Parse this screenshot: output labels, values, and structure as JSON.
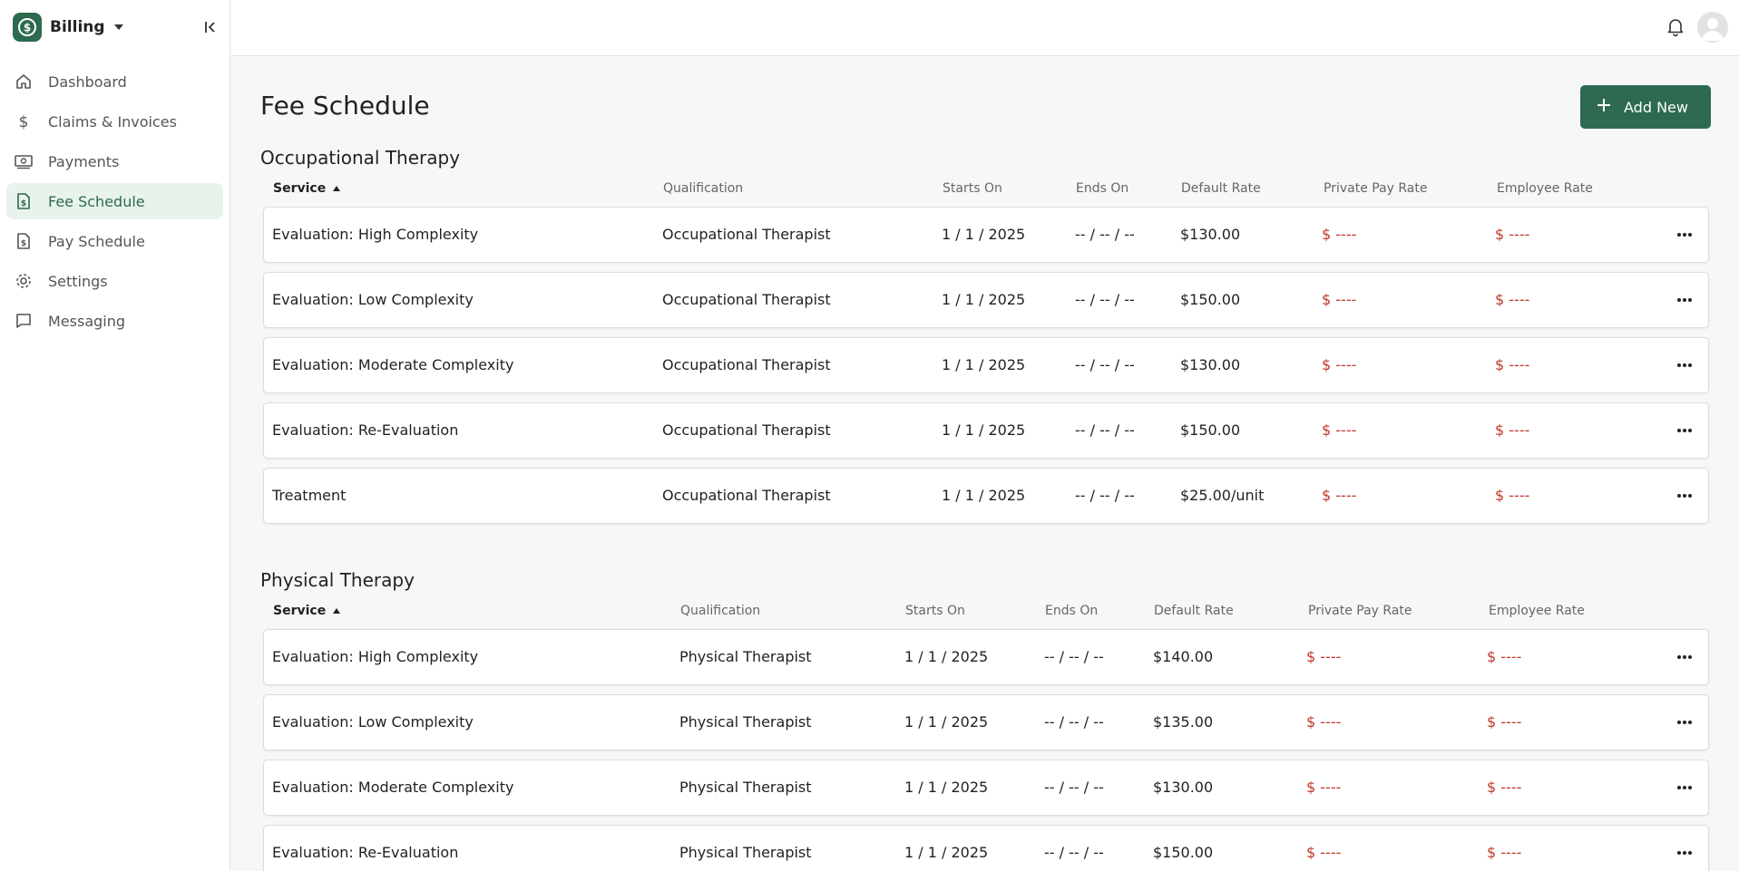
{
  "app": {
    "name": "Billing"
  },
  "nav": {
    "items": [
      {
        "label": "Dashboard"
      },
      {
        "label": "Claims & Invoices"
      },
      {
        "label": "Payments"
      },
      {
        "label": "Fee Schedule"
      },
      {
        "label": "Pay Schedule"
      },
      {
        "label": "Settings"
      },
      {
        "label": "Messaging"
      }
    ]
  },
  "page": {
    "title": "Fee Schedule",
    "add_button": "Add New"
  },
  "columns": [
    "Service",
    "Qualification",
    "Starts On",
    "Ends On",
    "Default Rate",
    "Private Pay Rate",
    "Employee Rate"
  ],
  "sections": [
    {
      "title": "Occupational Therapy",
      "rows": [
        {
          "service": "Evaluation: High Complexity",
          "qualification": "Occupational Therapist",
          "starts": "1 / 1 / 2025",
          "ends": "-- / -- / --",
          "default_rate": "$130.00",
          "private_pay": "$ ----",
          "employee": "$ ----"
        },
        {
          "service": "Evaluation: Low Complexity",
          "qualification": "Occupational Therapist",
          "starts": "1 / 1 / 2025",
          "ends": "-- / -- / --",
          "default_rate": "$150.00",
          "private_pay": "$ ----",
          "employee": "$ ----"
        },
        {
          "service": "Evaluation: Moderate Complexity",
          "qualification": "Occupational Therapist",
          "starts": "1 / 1 / 2025",
          "ends": "-- / -- / --",
          "default_rate": "$130.00",
          "private_pay": "$ ----",
          "employee": "$ ----"
        },
        {
          "service": "Evaluation: Re-Evaluation",
          "qualification": "Occupational Therapist",
          "starts": "1 / 1 / 2025",
          "ends": "-- / -- / --",
          "default_rate": "$150.00",
          "private_pay": "$ ----",
          "employee": "$ ----"
        },
        {
          "service": "Treatment",
          "qualification": "Occupational Therapist",
          "starts": "1 / 1 / 2025",
          "ends": "-- / -- / --",
          "default_rate": "$25.00/unit",
          "private_pay": "$ ----",
          "employee": "$ ----"
        }
      ]
    },
    {
      "title": "Physical Therapy",
      "rows": [
        {
          "service": "Evaluation: High Complexity",
          "qualification": "Physical Therapist",
          "starts": "1 / 1 / 2025",
          "ends": "-- / -- / --",
          "default_rate": "$140.00",
          "private_pay": "$ ----",
          "employee": "$ ----"
        },
        {
          "service": "Evaluation: Low Complexity",
          "qualification": "Physical Therapist",
          "starts": "1 / 1 / 2025",
          "ends": "-- / -- / --",
          "default_rate": "$135.00",
          "private_pay": "$ ----",
          "employee": "$ ----"
        },
        {
          "service": "Evaluation: Moderate Complexity",
          "qualification": "Physical Therapist",
          "starts": "1 / 1 / 2025",
          "ends": "-- / -- / --",
          "default_rate": "$130.00",
          "private_pay": "$ ----",
          "employee": "$ ----"
        },
        {
          "service": "Evaluation: Re-Evaluation",
          "qualification": "Physical Therapist",
          "starts": "1 / 1 / 2025",
          "ends": "-- / -- / --",
          "default_rate": "$150.00",
          "private_pay": "$ ----",
          "employee": "$ ----"
        }
      ]
    }
  ],
  "colors": {
    "accent": "#2d6a4f",
    "active_bg": "#e8f3ec",
    "placeholder_red": "#c0392b"
  }
}
